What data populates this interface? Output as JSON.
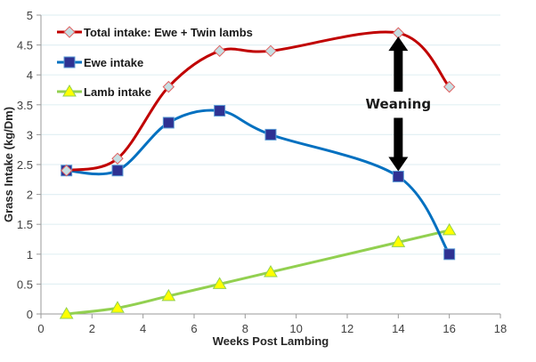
{
  "chart_data": {
    "type": "line",
    "title": "",
    "xlabel": "Weeks Post Lambing",
    "ylabel": "Grass Intake (kg/Dm)",
    "xlim": [
      0,
      18
    ],
    "ylim": [
      0,
      5
    ],
    "x_ticks": [
      "0",
      "2",
      "4",
      "6",
      "8",
      "10",
      "12",
      "14",
      "16",
      "18"
    ],
    "y_ticks": [
      "0",
      "0.5",
      "1",
      "1.5",
      "2",
      "2.5",
      "3",
      "3.5",
      "4",
      "4.5",
      "5"
    ],
    "grid": {
      "horizontal": true,
      "vertical": false
    },
    "legend_position": "upper-left-inside",
    "series": [
      {
        "name": "Total intake: Ewe + Twin lambs",
        "color": "#c00000",
        "marker": "diamond",
        "marker_fill": "#c7dfe3",
        "smooth": true,
        "x": [
          1,
          3,
          5,
          7,
          9,
          14,
          16
        ],
        "values": [
          2.4,
          2.6,
          3.8,
          4.4,
          4.4,
          4.7,
          3.8
        ]
      },
      {
        "name": "Ewe intake",
        "color": "#0070c0",
        "marker": "square",
        "marker_fill": "#2e3192",
        "smooth": true,
        "x": [
          1,
          3,
          5,
          7,
          9,
          14,
          16
        ],
        "values": [
          2.4,
          2.4,
          3.2,
          3.4,
          3.0,
          2.3,
          1.0
        ]
      },
      {
        "name": "Lamb intake",
        "color": "#92d050",
        "marker": "triangle",
        "marker_fill": "#ffff00",
        "smooth": true,
        "x": [
          1,
          3,
          5,
          7,
          9,
          14,
          16
        ],
        "values": [
          0,
          0.1,
          0.3,
          0.5,
          0.7,
          1.2,
          1.4
        ]
      }
    ],
    "annotations": [
      {
        "text": "Weaning",
        "type": "double-arrow",
        "x": 14,
        "y_from": 2.3,
        "y_to": 4.7
      }
    ]
  }
}
